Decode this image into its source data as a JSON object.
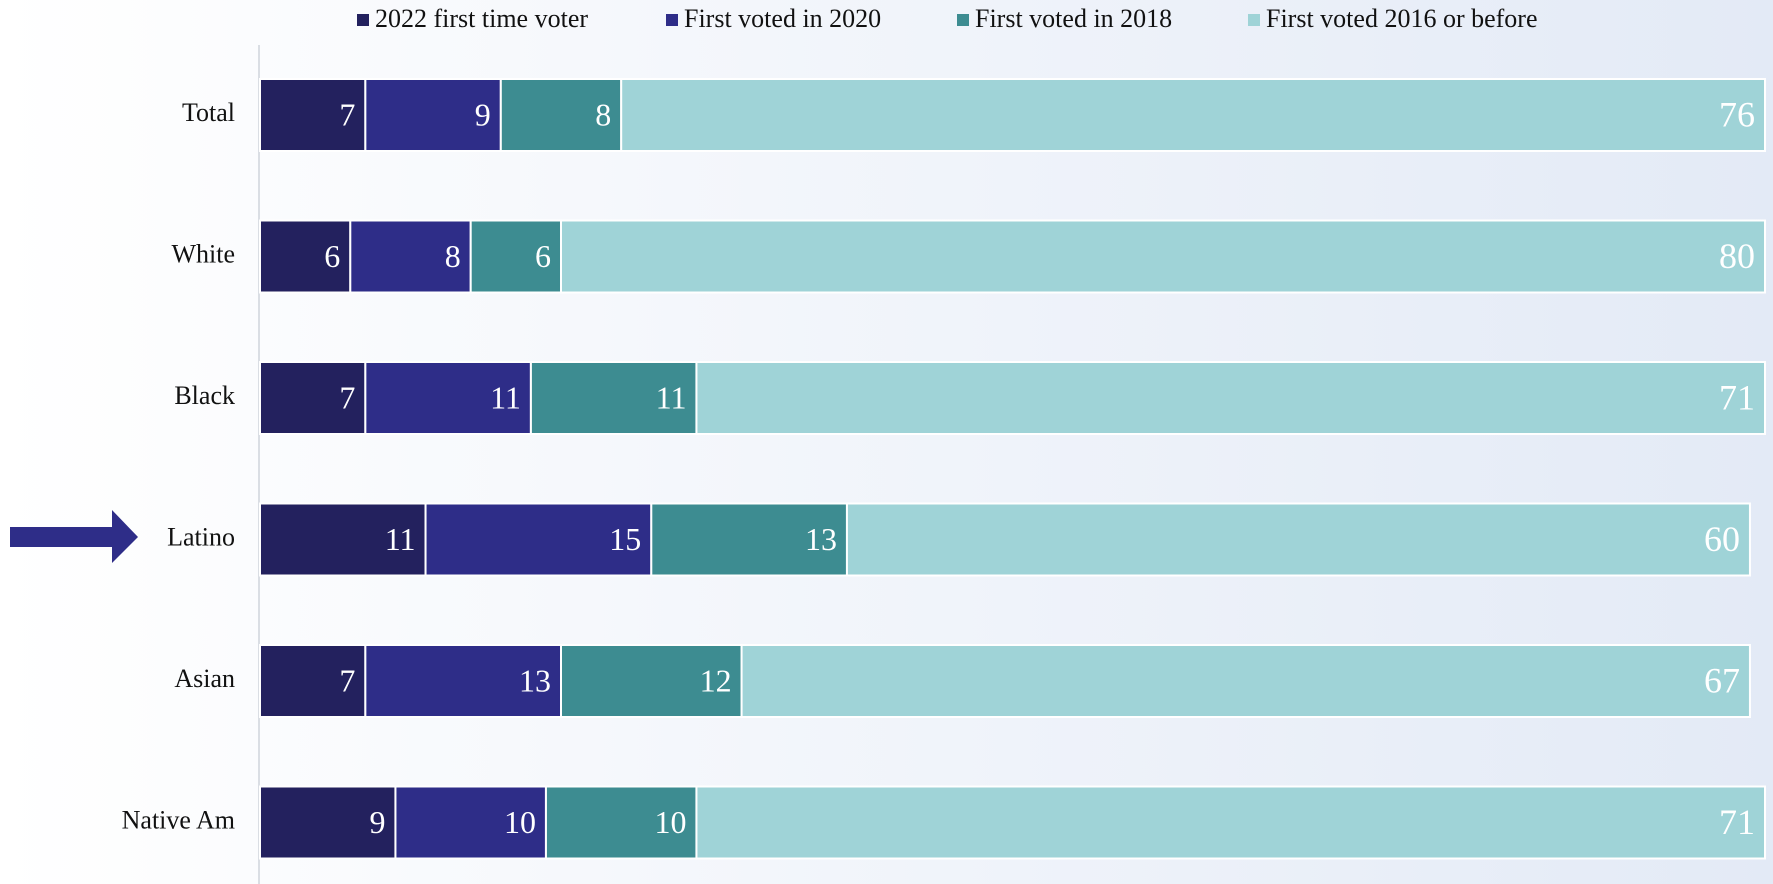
{
  "chart_data": {
    "type": "stacked-bar-horizontal",
    "categories": [
      "Total",
      "White",
      "Black",
      "Latino",
      "Asian",
      "Native Am"
    ],
    "series": [
      {
        "name": "2022 first time voter",
        "color": "#23215e",
        "values": [
          7,
          6,
          7,
          11,
          7,
          9
        ]
      },
      {
        "name": "First voted in 2020",
        "color": "#2e2d88",
        "values": [
          9,
          8,
          11,
          15,
          13,
          10
        ]
      },
      {
        "name": "First voted in 2018",
        "color": "#3d8c91",
        "values": [
          8,
          6,
          11,
          13,
          12,
          10
        ]
      },
      {
        "name": "First voted 2016 or before",
        "color": "#9fd3d7",
        "values": [
          76,
          80,
          71,
          60,
          67,
          71
        ]
      }
    ],
    "xlim": [
      0,
      100
    ]
  }
}
